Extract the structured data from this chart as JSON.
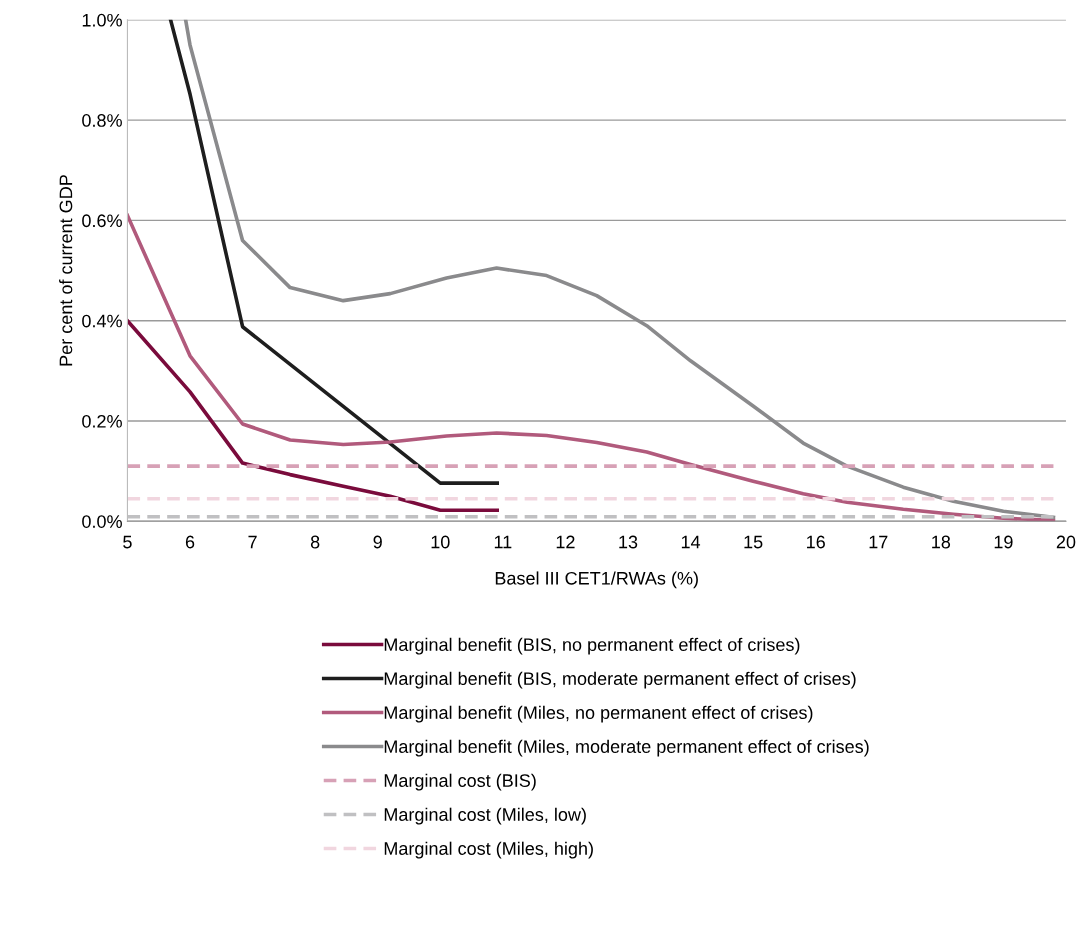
{
  "chart_data": {
    "type": "line",
    "xlabel": "Basel III CET1/RWAs (%)",
    "ylabel": "Per cent of current GDP",
    "xlim": [
      5,
      20
    ],
    "xticks": [
      5,
      6,
      7,
      8,
      9,
      10,
      11,
      12,
      13,
      14,
      15,
      16,
      17,
      18,
      19,
      20
    ],
    "ylim": [
      0,
      1.0
    ],
    "yticks": [
      {
        "value": 0,
        "label": "0.0%"
      },
      {
        "value": 0.2,
        "label": "0.2%"
      },
      {
        "value": 0.4,
        "label": "0.4%"
      },
      {
        "value": 0.6,
        "label": "0.6%"
      },
      {
        "value": 0.8,
        "label": "0.8%"
      },
      {
        "value": 1.0,
        "label": "1.0%"
      }
    ],
    "grid": "y",
    "legend": "bottom",
    "marker": "none",
    "series": [
      {
        "name": "Marginal benefit (BIS, no permanent effect of crises)",
        "color": "#7a0b3c",
        "line_style": "solid",
        "x": [
          5,
          6,
          6.84,
          7.6,
          8.45,
          9.2,
          10.0,
          10.91
        ],
        "values": [
          0.4,
          0.258,
          0.116,
          0.093,
          0.07,
          0.05,
          0.022,
          0.022
        ]
      },
      {
        "name": "Marginal benefit (BIS, moderate permanent effect of crises)",
        "color": "#1e1e1e",
        "line_style": "solid",
        "x": [
          5.69,
          6,
          6.84,
          10.0,
          10.91
        ],
        "values": [
          1.0,
          0.852,
          0.388,
          0.076,
          0.076
        ]
      },
      {
        "name": "Marginal benefit (Miles, no permanent effect of crises)",
        "color": "#b15a7c",
        "line_style": "solid",
        "x": [
          5,
          6,
          6.84,
          7.6,
          8.45,
          9.2,
          10.1,
          10.9,
          11.7,
          12.5,
          13.3,
          14.0,
          15.0,
          15.8,
          16.5,
          17.4,
          18.2,
          19.0,
          19.8
        ],
        "values": [
          0.61,
          0.33,
          0.194,
          0.162,
          0.153,
          0.158,
          0.17,
          0.176,
          0.171,
          0.157,
          0.138,
          0.113,
          0.08,
          0.055,
          0.038,
          0.024,
          0.014,
          0.006,
          0.002
        ]
      },
      {
        "name": "Marginal benefit (Miles, moderate permanent effect of crises)",
        "color": "#8a8a8c",
        "line_style": "solid",
        "x": [
          5.93,
          6.0,
          6.84,
          7.6,
          8.45,
          9.2,
          10.1,
          10.9,
          11.7,
          12.5,
          13.3,
          14.0,
          15.0,
          15.8,
          16.5,
          17.4,
          18.2,
          19.0,
          19.8
        ],
        "values": [
          1.0,
          0.95,
          0.56,
          0.466,
          0.44,
          0.454,
          0.485,
          0.505,
          0.49,
          0.45,
          0.39,
          0.32,
          0.23,
          0.156,
          0.11,
          0.068,
          0.04,
          0.02,
          0.008
        ]
      },
      {
        "name": "Marginal cost (BIS)",
        "color": "#d7a1b6",
        "line_style": "dashed",
        "x": [
          5,
          19.8
        ],
        "values": [
          0.11,
          0.11
        ]
      },
      {
        "name": "Marginal cost (Miles, low)",
        "color": "#c0c0c2",
        "line_style": "dashed",
        "x": [
          5,
          19.8
        ],
        "values": [
          0.009,
          0.009
        ]
      },
      {
        "name": "Marginal cost (Miles, high)",
        "color": "#f1d6df",
        "line_style": "dashed",
        "x": [
          5,
          19.8
        ],
        "values": [
          0.045,
          0.045
        ]
      }
    ]
  }
}
